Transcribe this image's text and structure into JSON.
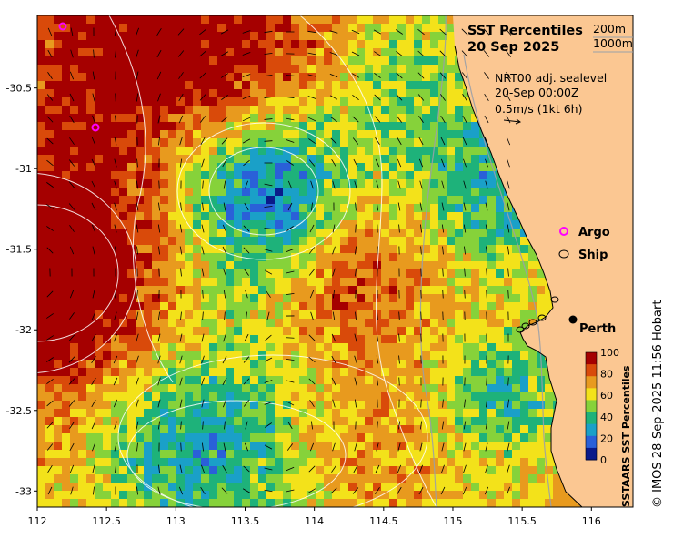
{
  "map": {
    "title": "SST Percentiles",
    "date": "20 Sep 2025",
    "isobaths": [
      "200m",
      "1000m"
    ],
    "current_info": {
      "line1": "NRT00 adj. sealevel",
      "line2": "20-Sep 00:00Z",
      "line3": "0.5m/s (1kt 6h)"
    },
    "legend": [
      {
        "label": "Argo",
        "symbol": "magenta-circle-icon"
      },
      {
        "label": "Ship",
        "symbol": "black-circle-icon"
      }
    ],
    "city": "Perth",
    "x_ticks": [
      "112",
      "112.5",
      "113",
      "113.5",
      "114",
      "114.5",
      "115",
      "115.5",
      "116"
    ],
    "y_ticks": [
      "-30.5",
      "-31",
      "-31.5",
      "-32",
      "-32.5",
      "-33"
    ],
    "lon_range": [
      112,
      116.3
    ],
    "lat_range": [
      -33.1,
      -30.05
    ],
    "colorbar": {
      "title": "SSTAARS SST Percentiles",
      "ticks": [
        "100",
        "80",
        "60",
        "40",
        "20",
        "0"
      ],
      "colors": [
        "#a50000",
        "#d94a0a",
        "#e89a1e",
        "#f3e21a",
        "#86d23a",
        "#1eb27a",
        "#1aa0c8",
        "#2a60d8",
        "#0a1a8a"
      ]
    },
    "credit": "© IMOS 28-Sep-2025 11:56 Hobart",
    "colors": {
      "land": "#fbc792",
      "argo": "#ff00ff",
      "ship": "#000000"
    }
  }
}
